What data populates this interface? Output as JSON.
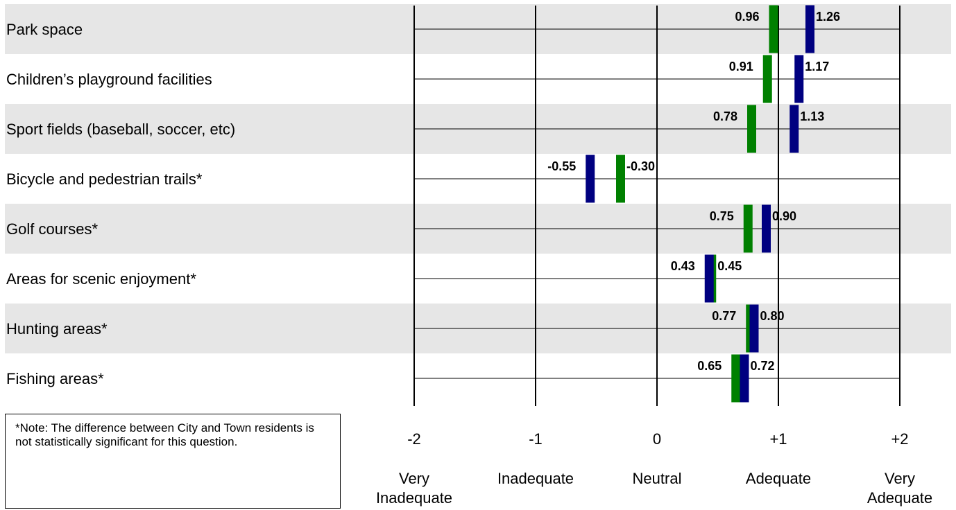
{
  "chart_data": {
    "type": "bar",
    "categories": [
      "Park space",
      "Children’s playground facilities",
      "Sport fields (baseball, soccer, etc)",
      "Bicycle and pedestrian trails*",
      "Golf courses*",
      "Areas for scenic enjoyment*",
      "Hunting areas*",
      "Fishing areas*"
    ],
    "series": [
      {
        "values": [
          0.96,
          0.91,
          0.78,
          -0.3,
          0.75,
          0.45,
          0.77,
          0.65
        ]
      },
      {
        "values": [
          1.26,
          1.17,
          1.13,
          -0.55,
          0.9,
          0.43,
          0.8,
          0.72
        ]
      }
    ],
    "value_labels": [
      [
        "0.96",
        "1.26"
      ],
      [
        "0.91",
        "1.17"
      ],
      [
        "0.78",
        "1.13"
      ],
      [
        "-0.30",
        "-0.55"
      ],
      [
        "0.75",
        "0.90"
      ],
      [
        "0.45",
        "0.43"
      ],
      [
        "0.77",
        "0.80"
      ],
      [
        "0.65",
        "0.72"
      ]
    ],
    "xlim": [
      -2,
      2
    ],
    "ticks": [
      {
        "value": -2,
        "label": "-2",
        "desc": [
          "Very",
          "Inadequate"
        ]
      },
      {
        "value": -1,
        "label": "-1",
        "desc": [
          "Inadequate"
        ]
      },
      {
        "value": 0,
        "label": "0",
        "desc": [
          "Neutral"
        ]
      },
      {
        "value": 1,
        "label": "+1",
        "desc": [
          "Adequate"
        ]
      },
      {
        "value": 2,
        "label": "+2",
        "desc": [
          "Very",
          "Adequate"
        ]
      }
    ],
    "colors": {
      "series_0": "#008000",
      "series_1": "#000080",
      "band": "#e6e6e6"
    },
    "orientation": "horizontal",
    "grid": true
  },
  "note": "*Note: The difference between City and Town residents is not statistically significant for this question."
}
